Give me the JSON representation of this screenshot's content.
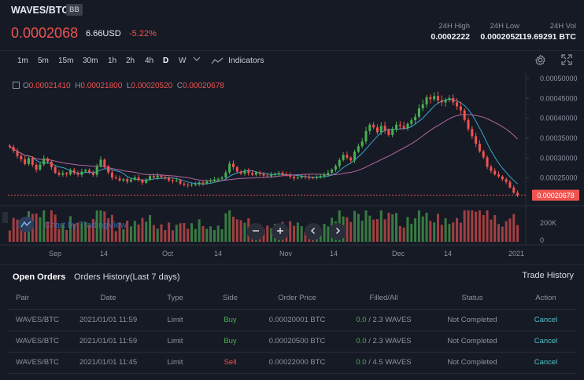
{
  "header": {
    "pair": "WAVES/BTC",
    "badge": "BB",
    "last_price": "0.0002068",
    "usd_price": "6.66USD",
    "change": "-5.22%",
    "stats": [
      {
        "label": "24H High",
        "value": "0.0002222"
      },
      {
        "label": "24H Low",
        "value": "0.0002052"
      },
      {
        "label": "24H Vol",
        "value": "119.69291 BTC"
      }
    ]
  },
  "toolbar": {
    "timeframes": [
      "1m",
      "5m",
      "15m",
      "30m",
      "1h",
      "2h",
      "4h",
      "D",
      "W"
    ],
    "active_timeframe": "D",
    "indicators_label": "Indicators",
    "icons": [
      "chevron-down-icon",
      "line-chart-icon",
      "settings-icon",
      "fullscreen-icon"
    ]
  },
  "chart": {
    "ohlc": {
      "o_label": "O",
      "o": "0.00021410",
      "h_label": "H",
      "h": "0.00021800",
      "l_label": "L",
      "l": "0.00020520",
      "c_label": "C",
      "c": "0.00020678"
    },
    "watermark": "Chart by TradingView",
    "current_price_label": "0.00020678",
    "controls": [
      "minus-icon",
      "plus-icon",
      "chevron-left-icon",
      "chevron-right-icon"
    ]
  },
  "chart_data": {
    "type": "candlestick",
    "price_axis": {
      "ticks": [
        "0.00050000",
        "0.00045000",
        "0.00040000",
        "0.00035000",
        "0.00030000",
        "0.00025000"
      ],
      "range": [
        0.0002,
        0.0005
      ]
    },
    "volume_axis": {
      "ticks": [
        "200K",
        "0"
      ]
    },
    "x_tick_labels": [
      "Sep",
      "14",
      "Oct",
      "14",
      "Nov",
      "14",
      "Dec",
      "14",
      "2021"
    ],
    "colors": {
      "up": "#4caf50",
      "down": "#ef5350",
      "ma_fast": "#35a7c9",
      "ma_slow": "#b466a0"
    },
    "closes": [
      0.000328,
      0.000318,
      0.000305,
      0.000297,
      0.000285,
      0.0003,
      0.000283,
      0.000271,
      0.000284,
      0.000299,
      0.000291,
      0.000277,
      0.000263,
      0.000258,
      0.000262,
      0.000259,
      0.00027,
      0.000262,
      0.000258,
      0.000266,
      0.00027,
      0.000264,
      0.000258,
      0.000279,
      0.000296,
      0.000279,
      0.000264,
      0.000251,
      0.000249,
      0.000244,
      0.000247,
      0.000241,
      0.000246,
      0.000251,
      0.000245,
      0.000238,
      0.000246,
      0.000255,
      0.000251,
      0.000256,
      0.000252,
      0.000249,
      0.000244,
      0.000242,
      0.000244,
      0.000236,
      0.000233,
      0.000231,
      0.000233,
      0.000234,
      0.000239,
      0.000236,
      0.000241,
      0.000243,
      0.000246,
      0.000248,
      0.000251,
      0.000264,
      0.000286,
      0.000277,
      0.000266,
      0.000261,
      0.000268,
      0.000262,
      0.000258,
      0.000264,
      0.00026,
      0.000256,
      0.000254,
      0.000258,
      0.000261,
      0.000263,
      0.000259,
      0.000257,
      0.000253,
      0.000249,
      0.000251,
      0.000254,
      0.000252,
      0.000251,
      0.00025,
      0.000253,
      0.000255,
      0.000258,
      0.000263,
      0.000271,
      0.00028,
      0.000295,
      0.000308,
      0.000301,
      0.000294,
      0.000316,
      0.00033,
      0.000342,
      0.000368,
      0.000384,
      0.000377,
      0.000365,
      0.000381,
      0.00037,
      0.000358,
      0.000373,
      0.000384,
      0.000381,
      0.000375,
      0.000386,
      0.000395,
      0.000404,
      0.000425,
      0.000435,
      0.000453,
      0.000448,
      0.000456,
      0.000445,
      0.00044,
      0.000446,
      0.000451,
      0.00044,
      0.00043,
      0.00042,
      0.000396,
      0.000373,
      0.000355,
      0.000336,
      0.000317,
      0.000302,
      0.000278,
      0.000268,
      0.000259,
      0.000254,
      0.000247,
      0.00024,
      0.000226,
      0.000213,
      0.000206
    ],
    "last_close": 0.00020678
  },
  "orders": {
    "tabs": [
      "Open Orders",
      "Orders History(Last 7 days)"
    ],
    "trade_history_label": "Trade History",
    "columns": [
      "Pair",
      "Date",
      "Type",
      "Side",
      "Order Price",
      "Filled/All",
      "Status",
      "Action"
    ],
    "rows": [
      {
        "pair": "WAVES/BTC",
        "date": "2021/01/01 11:59",
        "type": "Limit",
        "side": "Buy",
        "price": "0.00020001 BTC",
        "filled": "0.0",
        "all": " / 2.3 WAVES",
        "status": "Not Completed",
        "action": "Cancel"
      },
      {
        "pair": "WAVES/BTC",
        "date": "2021/01/01 11:59",
        "type": "Limit",
        "side": "Buy",
        "price": "0.00020500 BTC",
        "filled": "0.0",
        "all": " / 2.3 WAVES",
        "status": "Not Completed",
        "action": "Cancel"
      },
      {
        "pair": "WAVES/BTC",
        "date": "2021/01/01 11:45",
        "type": "Limit",
        "side": "Sell",
        "price": "0.00022000 BTC",
        "filled": "0.0",
        "all": " / 4.5 WAVES",
        "status": "Not Completed",
        "action": "Cancel"
      }
    ]
  }
}
